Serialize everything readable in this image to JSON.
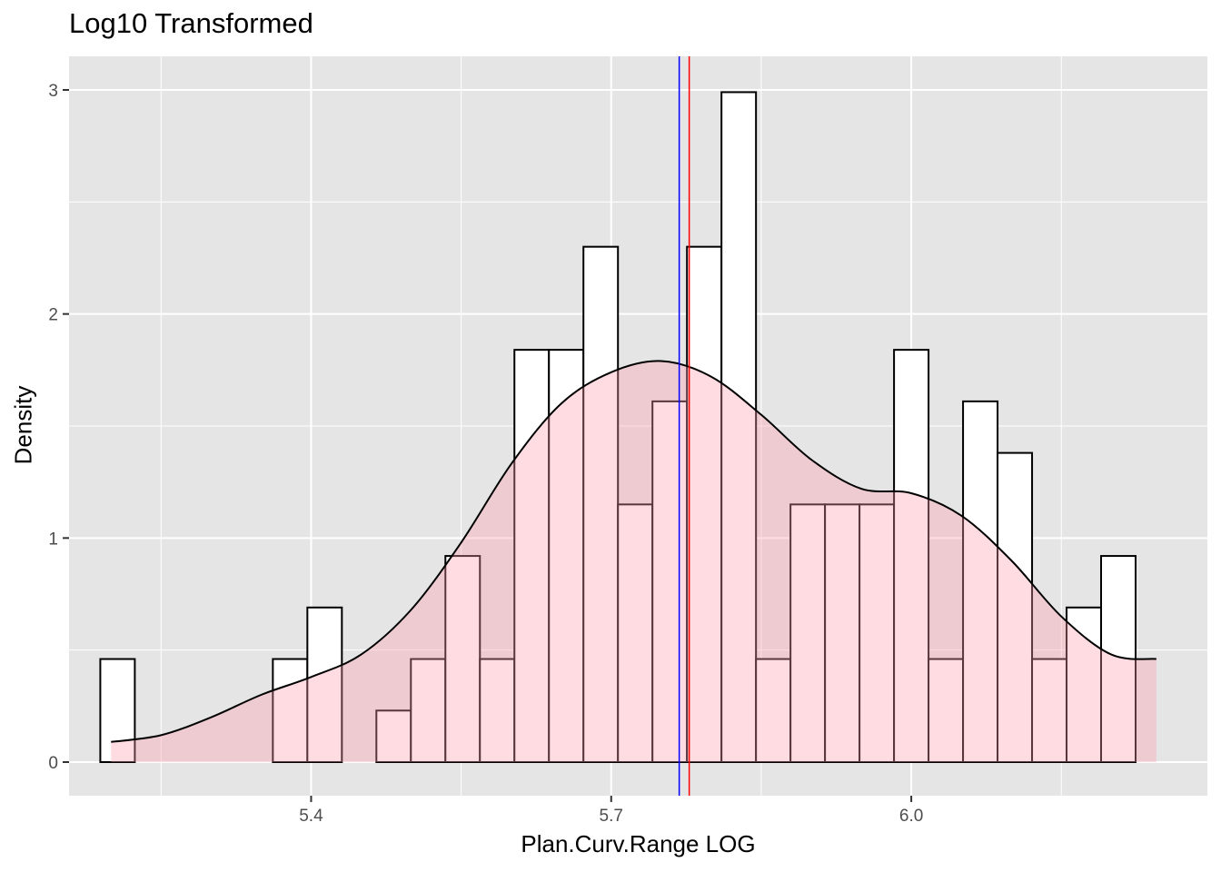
{
  "chart_data": {
    "type": "bar",
    "title": "Log10 Transformed",
    "xlabel": "Plan.Curv.Range LOG",
    "ylabel": "Density",
    "xlim": [
      5.158,
      6.296
    ],
    "ylim": [
      -0.15,
      3.15
    ],
    "x_ticks": [
      5.4,
      5.7,
      6.0
    ],
    "x_tick_labels": [
      "5.4",
      "5.7",
      "6.0"
    ],
    "y_ticks": [
      0,
      1,
      2,
      3
    ],
    "y_tick_labels": [
      "0",
      "1",
      "2",
      "3"
    ],
    "grid": true,
    "bin_width": 0.0345,
    "bins": [
      {
        "x": 5.2065,
        "density": 0.46
      },
      {
        "x": 5.241,
        "density": 0
      },
      {
        "x": 5.2755,
        "density": 0
      },
      {
        "x": 5.31,
        "density": 0
      },
      {
        "x": 5.3445,
        "density": 0
      },
      {
        "x": 5.379,
        "density": 0.46
      },
      {
        "x": 5.4135,
        "density": 0.69
      },
      {
        "x": 5.448,
        "density": 0
      },
      {
        "x": 5.4825,
        "density": 0.23
      },
      {
        "x": 5.517,
        "density": 0.46
      },
      {
        "x": 5.5515,
        "density": 0.92
      },
      {
        "x": 5.586,
        "density": 0.46
      },
      {
        "x": 5.6205,
        "density": 1.84
      },
      {
        "x": 5.655,
        "density": 1.84
      },
      {
        "x": 5.6895,
        "density": 2.3
      },
      {
        "x": 5.724,
        "density": 1.15
      },
      {
        "x": 5.7585,
        "density": 1.61
      },
      {
        "x": 5.793,
        "density": 2.3
      },
      {
        "x": 5.8275,
        "density": 2.99
      },
      {
        "x": 5.862,
        "density": 0.46
      },
      {
        "x": 5.8965,
        "density": 1.15
      },
      {
        "x": 5.931,
        "density": 1.15
      },
      {
        "x": 5.9655,
        "density": 1.15
      },
      {
        "x": 6.0,
        "density": 1.84
      },
      {
        "x": 6.0345,
        "density": 0.46
      },
      {
        "x": 6.069,
        "density": 1.61
      },
      {
        "x": 6.1035,
        "density": 1.38
      },
      {
        "x": 6.138,
        "density": 0.46
      },
      {
        "x": 6.1725,
        "density": 0.69
      },
      {
        "x": 6.207,
        "density": 0.92
      }
    ],
    "density_curve": {
      "x": [
        5.2,
        5.25,
        5.3,
        5.35,
        5.4,
        5.45,
        5.5,
        5.55,
        5.6,
        5.65,
        5.7,
        5.75,
        5.8,
        5.85,
        5.9,
        5.95,
        6.0,
        6.05,
        6.1,
        6.15,
        6.2,
        6.245
      ],
      "y": [
        0.09,
        0.12,
        0.2,
        0.3,
        0.38,
        0.48,
        0.68,
        0.98,
        1.33,
        1.6,
        1.74,
        1.79,
        1.72,
        1.55,
        1.35,
        1.22,
        1.2,
        1.1,
        0.9,
        0.65,
        0.48,
        0.46
      ]
    },
    "vlines": [
      {
        "x": 5.768,
        "color": "#0000ff"
      },
      {
        "x": 5.778,
        "color": "#ff0000"
      }
    ],
    "colors": {
      "panel_bg": "#e5e5e5",
      "grid": "#ffffff",
      "bar_fill": "#ffffff",
      "bar_stroke": "#000000",
      "density_fill": "#ff9aa8",
      "density_fill_opacity": 0.35,
      "density_stroke": "#000000"
    }
  }
}
